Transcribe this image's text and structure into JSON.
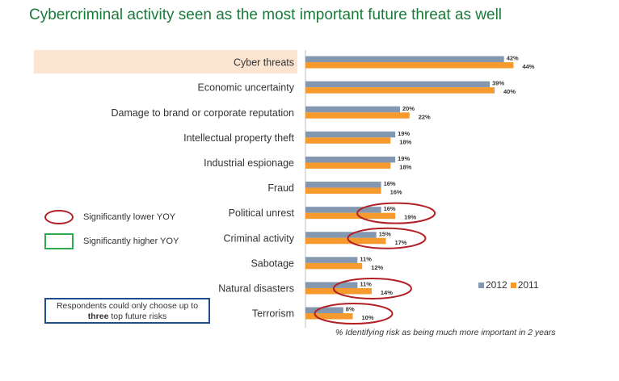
{
  "title": "Cybercriminal activity seen as the most important future threat as well",
  "chart_data": {
    "type": "bar",
    "orientation": "horizontal",
    "categories": [
      "Cyber threats",
      "Economic uncertainty",
      "Damage to brand or corporate reputation",
      "Intellectual property theft",
      "Industrial espionage",
      "Fraud",
      "Political unrest",
      "Criminal activity",
      "Sabotage",
      "Natural disasters",
      "Terrorism"
    ],
    "series": [
      {
        "name": "2012",
        "color": "#8497b0",
        "values": [
          42,
          39,
          20,
          19,
          19,
          16,
          16,
          15,
          11,
          11,
          8
        ],
        "value_labels": [
          "42%",
          "39%",
          "20%",
          "19%",
          "19%",
          "16%",
          "16%",
          "15%",
          "11%",
          "11%",
          "8%"
        ]
      },
      {
        "name": "2011",
        "color": "#f79a2e",
        "values": [
          44,
          40,
          22,
          18,
          18,
          16,
          19,
          17,
          12,
          14,
          10
        ],
        "value_labels": [
          "44%",
          "40%",
          "22%",
          "18%",
          "18%",
          "16%",
          "19%",
          "17%",
          "12%",
          "14%",
          "10%"
        ]
      }
    ],
    "highlighted_category": "Cyber threats",
    "significantly_lower_yoy": [
      "Political unrest",
      "Criminal activity",
      "Natural disasters",
      "Terrorism"
    ],
    "xlim": [
      0,
      44
    ],
    "legend_position": "bottom-right"
  },
  "key": {
    "lower_label": "Significantly lower YOY",
    "higher_label": "Significantly higher YOY",
    "lower_color": "#b22025",
    "higher_color": "#2eaa4f"
  },
  "note": {
    "line1": "Respondents could only choose up to",
    "bold": "three",
    "rest": " top future risks"
  },
  "legend": {
    "label_2012": "2012",
    "label_2011": "2011"
  },
  "footnote": "% Identifying risk as being much more important in 2 years",
  "colors": {
    "highlight_band": "#fbe5d1",
    "title": "#1a7a3a",
    "note_border": "#1f4e8c"
  }
}
